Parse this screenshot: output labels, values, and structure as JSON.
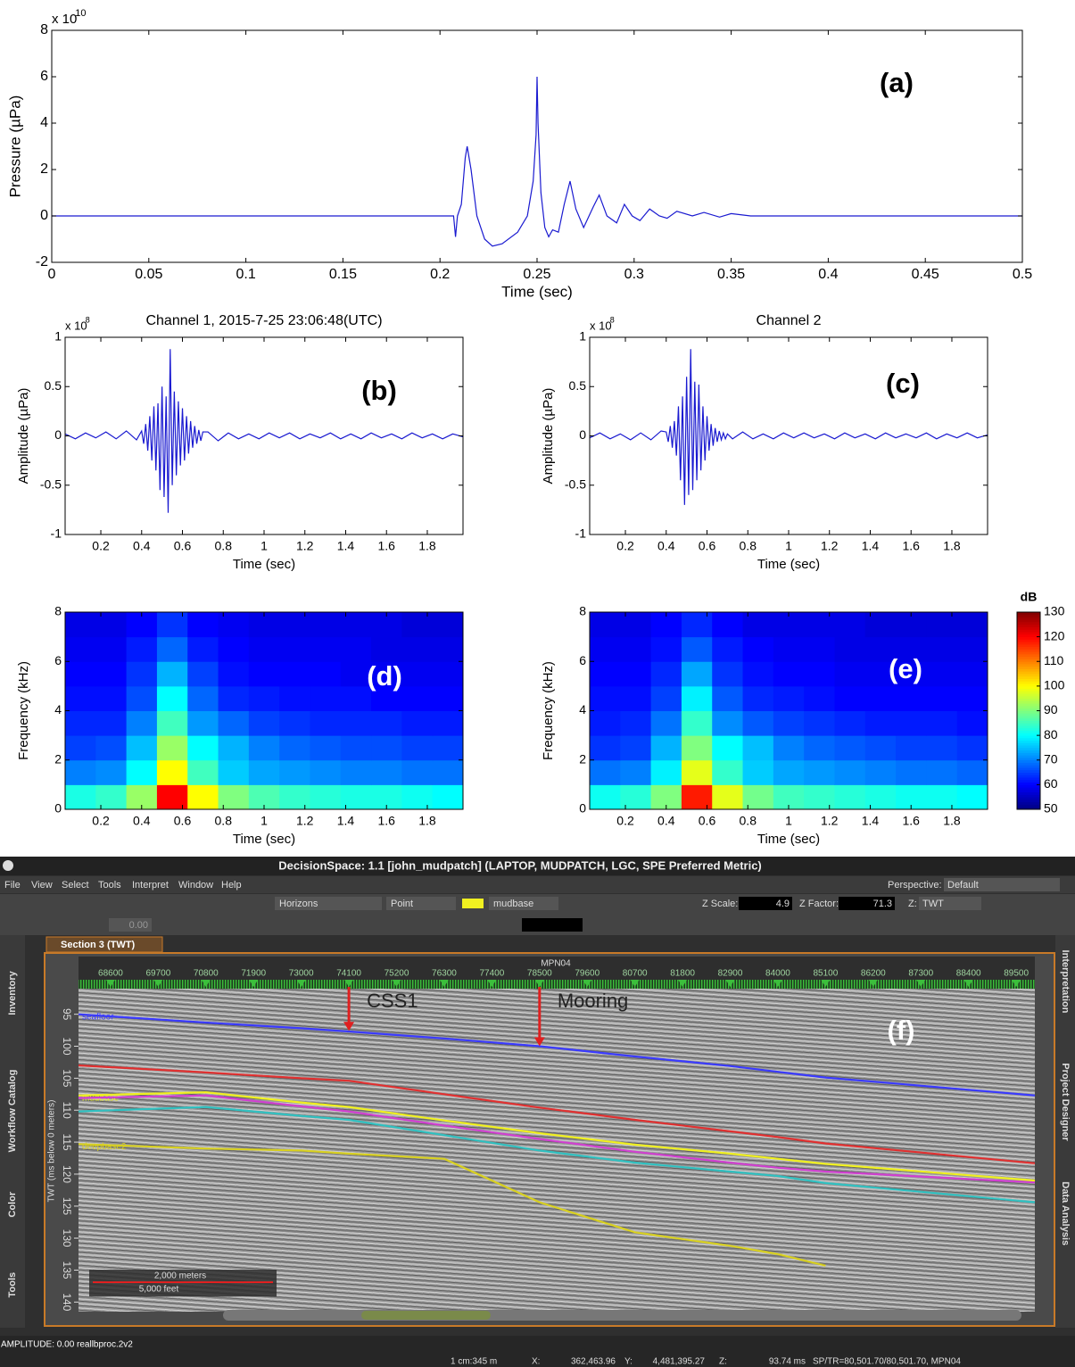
{
  "chart_data": [
    {
      "type": "line",
      "panel_label": "(a)",
      "xlabel": "Time (sec)",
      "ylabel": "Pressure (µPa)",
      "y_multiplier": "x 10",
      "y_exponent": "10",
      "x": [
        0,
        0.207,
        0.208,
        0.209,
        0.211,
        0.213,
        0.214,
        0.216,
        0.219,
        0.223,
        0.227,
        0.232,
        0.24,
        0.245,
        0.248,
        0.2495,
        0.25,
        0.2505,
        0.252,
        0.254,
        0.256,
        0.258,
        0.261,
        0.264,
        0.267,
        0.27,
        0.274,
        0.279,
        0.282,
        0.286,
        0.291,
        0.295,
        0.299,
        0.303,
        0.308,
        0.313,
        0.317,
        0.322,
        0.33,
        0.336,
        0.344,
        0.35,
        0.36,
        0.5
      ],
      "series": [
        {
          "color": "#1a1ad0",
          "values": [
            0,
            0,
            -0.9,
            0,
            0.5,
            2.5,
            3.0,
            2.0,
            0,
            -1.0,
            -1.3,
            -1.2,
            -0.7,
            0,
            1.5,
            3.5,
            6.0,
            4.0,
            1.0,
            -0.5,
            -0.9,
            -0.6,
            -0.7,
            0.5,
            1.5,
            0.3,
            -0.5,
            0.4,
            0.9,
            0,
            -0.3,
            0.5,
            0,
            -0.2,
            0.3,
            0,
            -0.1,
            0.2,
            0,
            0.15,
            -0.05,
            0.1,
            0,
            0
          ]
        }
      ],
      "xlim": [
        0,
        0.5
      ],
      "ylim": [
        -2,
        8
      ],
      "xticks": [
        0,
        0.05,
        0.1,
        0.15,
        0.2,
        0.25,
        0.3,
        0.35,
        0.4,
        0.45,
        0.5
      ],
      "yticks": [
        -2,
        0,
        2,
        4,
        6,
        8
      ]
    },
    {
      "type": "line",
      "title": "Channel 1, 2015-7-25 23:06:48(UTC)",
      "panel_label": "(b)",
      "xlabel": "Time (sec)",
      "ylabel": "Amplitude (µPa)",
      "y_multiplier": "x 10",
      "y_exponent": "8",
      "x": [
        0.025,
        0.075,
        0.125,
        0.175,
        0.225,
        0.275,
        0.325,
        0.375,
        0.4,
        0.41,
        0.42,
        0.43,
        0.44,
        0.45,
        0.46,
        0.47,
        0.48,
        0.49,
        0.5,
        0.51,
        0.52,
        0.53,
        0.54,
        0.55,
        0.56,
        0.57,
        0.58,
        0.59,
        0.6,
        0.61,
        0.62,
        0.63,
        0.64,
        0.65,
        0.66,
        0.67,
        0.68,
        0.69,
        0.7,
        0.725,
        0.775,
        0.825,
        0.875,
        0.925,
        0.975,
        1.025,
        1.075,
        1.125,
        1.175,
        1.225,
        1.275,
        1.325,
        1.375,
        1.425,
        1.475,
        1.525,
        1.575,
        1.625,
        1.675,
        1.725,
        1.775,
        1.825,
        1.875,
        1.925,
        1.975
      ],
      "series": [
        {
          "color": "#1a1ad0",
          "values": [
            0.02,
            -0.03,
            0.03,
            -0.02,
            0.04,
            -0.03,
            0.05,
            -0.04,
            0.05,
            -0.08,
            0.12,
            -0.15,
            0.2,
            -0.25,
            0.3,
            -0.35,
            0.33,
            -0.55,
            0.5,
            -0.62,
            0.4,
            -0.78,
            0.88,
            -0.5,
            0.45,
            -0.4,
            0.35,
            -0.3,
            0.28,
            -0.25,
            0.2,
            -0.18,
            0.15,
            -0.12,
            0.1,
            -0.08,
            0.06,
            -0.05,
            0.04,
            0.04,
            -0.05,
            0.03,
            -0.03,
            0.02,
            -0.03,
            0.03,
            -0.02,
            0.03,
            -0.03,
            0.02,
            -0.02,
            0.03,
            -0.03,
            0.02,
            -0.03,
            0.03,
            -0.02,
            0.02,
            -0.03,
            0.03,
            -0.02,
            0.02,
            -0.03,
            0.02,
            -0.01
          ]
        }
      ],
      "xlim": [
        0.025,
        1.975
      ],
      "ylim": [
        -1,
        1
      ],
      "xticks": [
        0.2,
        0.4,
        0.6,
        0.8,
        1,
        1.2,
        1.4,
        1.6,
        1.8
      ],
      "yticks": [
        -1,
        -0.5,
        0,
        0.5,
        1
      ]
    },
    {
      "type": "line",
      "title": "Channel 2",
      "panel_label": "(c)",
      "xlabel": "Time (sec)",
      "ylabel": "Amplitude (µPa)",
      "y_multiplier": "x 10",
      "y_exponent": "8",
      "x": [
        0.025,
        0.075,
        0.125,
        0.175,
        0.225,
        0.275,
        0.325,
        0.375,
        0.4,
        0.41,
        0.42,
        0.43,
        0.44,
        0.45,
        0.46,
        0.47,
        0.48,
        0.49,
        0.5,
        0.51,
        0.52,
        0.53,
        0.54,
        0.55,
        0.56,
        0.57,
        0.58,
        0.59,
        0.6,
        0.61,
        0.62,
        0.63,
        0.64,
        0.65,
        0.66,
        0.67,
        0.68,
        0.69,
        0.7,
        0.725,
        0.775,
        0.825,
        0.875,
        0.925,
        0.975,
        1.025,
        1.075,
        1.125,
        1.175,
        1.225,
        1.275,
        1.325,
        1.375,
        1.425,
        1.475,
        1.525,
        1.575,
        1.625,
        1.675,
        1.725,
        1.775,
        1.825,
        1.875,
        1.925,
        1.975
      ],
      "series": [
        {
          "color": "#1a1ad0",
          "values": [
            -0.02,
            0.03,
            -0.03,
            0.02,
            -0.04,
            0.03,
            -0.04,
            0.05,
            0.04,
            -0.06,
            0.1,
            -0.12,
            0.15,
            -0.2,
            0.3,
            -0.45,
            0.4,
            -0.7,
            0.6,
            -0.6,
            0.88,
            -0.55,
            0.55,
            -0.45,
            0.52,
            -0.35,
            0.3,
            -0.25,
            0.2,
            -0.15,
            0.12,
            -0.1,
            0.08,
            -0.06,
            0.05,
            -0.04,
            0.03,
            -0.03,
            0.02,
            -0.03,
            0.04,
            -0.03,
            0.02,
            -0.03,
            0.03,
            -0.02,
            0.03,
            -0.02,
            0.02,
            -0.03,
            0.03,
            -0.02,
            0.02,
            -0.03,
            0.03,
            -0.02,
            0.02,
            -0.02,
            0.03,
            -0.03,
            0.02,
            -0.02,
            0.03,
            -0.02,
            0.01
          ]
        }
      ],
      "xlim": [
        0.025,
        1.975
      ],
      "ylim": [
        -1,
        1
      ],
      "xticks": [
        0.2,
        0.4,
        0.6,
        0.8,
        1,
        1.2,
        1.4,
        1.6,
        1.8
      ],
      "yticks": [
        -1,
        -0.5,
        0,
        0.5,
        1
      ]
    },
    {
      "type": "heatmap",
      "panel_label": "(d)",
      "xlabel": "Time (sec)",
      "ylabel": "Frequency (kHz)",
      "xbins": [
        0.025,
        0.175,
        0.325,
        0.475,
        0.625,
        0.775,
        0.925,
        1.075,
        1.225,
        1.375,
        1.525,
        1.675,
        1.825,
        1.975
      ],
      "ybins": [
        0,
        1,
        2,
        3,
        4,
        5,
        6,
        7,
        8
      ],
      "values": [
        [
          82,
          84,
          92,
          120,
          100,
          90,
          86,
          84,
          83,
          82,
          82,
          81,
          80
        ],
        [
          70,
          71,
          80,
          100,
          85,
          76,
          73,
          72,
          71,
          70,
          70,
          69,
          69
        ],
        [
          65,
          66,
          75,
          92,
          80,
          74,
          70,
          68,
          67,
          66,
          66,
          65,
          65
        ],
        [
          63,
          63,
          70,
          85,
          72,
          68,
          65,
          64,
          63,
          63,
          63,
          62,
          62
        ],
        [
          61,
          61,
          66,
          80,
          68,
          63,
          62,
          61,
          61,
          61,
          60,
          60,
          60
        ],
        [
          60,
          60,
          64,
          74,
          65,
          61,
          60,
          60,
          60,
          59,
          59,
          59,
          59
        ],
        [
          59,
          59,
          62,
          68,
          62,
          60,
          59,
          59,
          59,
          59,
          58,
          58,
          58
        ],
        [
          58,
          58,
          60,
          64,
          60,
          59,
          58,
          58,
          58,
          58,
          58,
          57,
          57
        ]
      ],
      "xlim": [
        0.025,
        1.975
      ],
      "ylim": [
        0,
        8
      ],
      "xticks": [
        0.2,
        0.4,
        0.6,
        0.8,
        1,
        1.2,
        1.4,
        1.6,
        1.8
      ],
      "yticks": [
        0,
        2,
        4,
        6,
        8
      ]
    },
    {
      "type": "heatmap",
      "panel_label": "(e)",
      "xlabel": "Time (sec)",
      "ylabel": "Frequency (kHz)",
      "xbins": [
        0.025,
        0.175,
        0.325,
        0.475,
        0.625,
        0.775,
        0.925,
        1.075,
        1.225,
        1.375,
        1.525,
        1.675,
        1.825,
        1.975
      ],
      "ybins": [
        0,
        1,
        2,
        3,
        4,
        5,
        6,
        7,
        8
      ],
      "values": [
        [
          81,
          83,
          90,
          118,
          98,
          89,
          85,
          84,
          83,
          82,
          81,
          81,
          80
        ],
        [
          69,
          70,
          79,
          98,
          84,
          76,
          73,
          72,
          71,
          70,
          69,
          69,
          68
        ],
        [
          64,
          65,
          74,
          90,
          80,
          75,
          70,
          68,
          67,
          66,
          65,
          65,
          64
        ],
        [
          62,
          63,
          69,
          84,
          71,
          67,
          65,
          64,
          63,
          62,
          62,
          62,
          61
        ],
        [
          61,
          61,
          65,
          79,
          67,
          63,
          62,
          61,
          60,
          60,
          60,
          60,
          60
        ],
        [
          60,
          60,
          63,
          73,
          64,
          61,
          60,
          60,
          59,
          59,
          59,
          59,
          59
        ],
        [
          59,
          59,
          61,
          67,
          62,
          60,
          59,
          59,
          58,
          58,
          58,
          58,
          58
        ],
        [
          58,
          58,
          60,
          63,
          60,
          58,
          58,
          58,
          58,
          57,
          57,
          57,
          57
        ]
      ],
      "xlim": [
        0.025,
        1.975
      ],
      "ylim": [
        0,
        8
      ],
      "xticks": [
        0.2,
        0.4,
        0.6,
        0.8,
        1,
        1.2,
        1.4,
        1.6,
        1.8
      ],
      "yticks": [
        0,
        2,
        4,
        6,
        8
      ]
    },
    {
      "type": "colorbar",
      "title": "dB",
      "colormap": "jet",
      "ylim": [
        50,
        130
      ],
      "yticks": [
        50,
        60,
        70,
        80,
        90,
        100,
        110,
        120,
        130
      ]
    }
  ],
  "screenshot": {
    "title": "DecisionSpace: 1.1 [john_mudpatch] (LAPTOP, MUDPATCH, LGC, SPE Preferred Metric)",
    "menu": [
      "File",
      "View",
      "Select",
      "Tools",
      "Interpret",
      "Window",
      "Help"
    ],
    "perspective_label": "Perspective:",
    "perspective": "Default",
    "toolbar": {
      "horizons": "Horizons",
      "mode": "Point",
      "horizon": "mudbase",
      "z_scale_label": "Z Scale:",
      "z_scale": "4.9",
      "z_factor_label": "Z Factor:",
      "z_factor": "71.3",
      "z_label": "Z:",
      "z_domain": "TWT",
      "zero": "0.00"
    },
    "tab": "Section 3 (TWT)",
    "left_tabs": [
      "Inventory",
      "Workflow Catalog",
      "Color",
      "Tools"
    ],
    "right_tabs": [
      "Interpretation",
      "Project Designer",
      "Data Analysis"
    ],
    "section": {
      "well": "MPN04",
      "ylabel": "TWT (ms below 0 meters)",
      "panel_label": "(f)",
      "y_reversed": true,
      "xlim": [
        67860,
        89930
      ],
      "ylim": [
        91,
        141.5
      ],
      "xticks": [
        68600,
        69700,
        70800,
        71900,
        73000,
        74100,
        75200,
        76300,
        77400,
        78500,
        79600,
        80700,
        81800,
        82900,
        84000,
        85100,
        86200,
        87300,
        88400,
        89500
      ],
      "yticks": [
        95,
        100,
        105,
        110,
        115,
        120,
        125,
        130,
        135,
        140
      ],
      "x": [
        67860,
        70800,
        73000,
        74100,
        76300,
        78500,
        80700,
        82900,
        84000,
        85100,
        89930
      ],
      "series": [
        {
          "name": "seafloor",
          "color": "#3a3aff",
          "values": [
            95,
            96.3,
            97.2,
            97.7,
            98.8,
            100,
            101.6,
            103.1,
            104,
            104.9,
            107.7
          ]
        },
        {
          "color": "#e03030",
          "values": [
            103,
            104.1,
            105,
            105.4,
            107.5,
            109.6,
            111.5,
            113.3,
            114.2,
            115.2,
            118.3
          ]
        },
        {
          "name": "mudbase",
          "color": "#f0f020",
          "values": [
            107.7,
            107.2,
            108.8,
            109.5,
            111.6,
            113.6,
            115.4,
            116.8,
            117.6,
            118.4,
            121
          ]
        },
        {
          "color": "#d040d0",
          "values": [
            108.1,
            107.7,
            109.4,
            110.2,
            112.4,
            114.5,
            116.5,
            118.2,
            119,
            119.6,
            121.3
          ]
        },
        {
          "color": "#30c0c0",
          "values": [
            110.2,
            109.5,
            110.9,
            111.5,
            113.9,
            116.3,
            118.2,
            119.6,
            120.3,
            121.4,
            124.4
          ]
        },
        {
          "name": "deepbase2",
          "color": "#d8d020",
          "values": [
            115.3,
            116,
            116.3,
            116.8,
            117.6,
            124.4,
            129.1,
            131.2,
            132.5,
            134.3,
            null
          ]
        }
      ],
      "annotations": [
        {
          "text": "CSS1",
          "x": 74100,
          "y": 97.6
        },
        {
          "text": "Mooring",
          "x": 78500,
          "y": 100
        }
      ],
      "scale_bar": [
        "2,000 meters",
        "5,000 feet"
      ]
    },
    "status": {
      "amplitude": "AMPLITUDE: 0.00 reallbproc.2v2",
      "scale": "1 cm:345 m",
      "x_label": "X:",
      "x": "362,463.96",
      "y_label": "Y:",
      "y": "4,481,395.27",
      "z_label": "Z:",
      "z": "93.74 ms",
      "sp": "SP/TR=80,501.70/80,501.70, MPN04"
    }
  }
}
